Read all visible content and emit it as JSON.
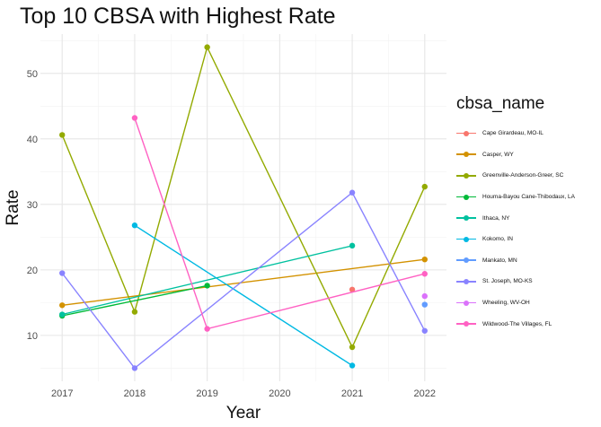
{
  "chart_data": {
    "type": "line",
    "title": "Top 10 CBSA with Highest Rate",
    "xlabel": "Year",
    "ylabel": "Rate",
    "x_ticks": [
      2017,
      2018,
      2019,
      2020,
      2021,
      2022
    ],
    "y_ticks": [
      10,
      20,
      30,
      40,
      50
    ],
    "xlim": [
      2016.7,
      2022.3
    ],
    "ylim": [
      3.0,
      56.0
    ],
    "grid": true,
    "legend_title": "cbsa_name",
    "legend_position": "right",
    "series": [
      {
        "name": "Cape Girardeau, MO-IL",
        "color": "#F8766D",
        "points": [
          [
            2021,
            17.0
          ]
        ]
      },
      {
        "name": "Casper, WY",
        "color": "#D39200",
        "points": [
          [
            2017,
            14.6
          ],
          [
            2022,
            21.6
          ]
        ]
      },
      {
        "name": "Greenville-Anderson-Greer, SC",
        "color": "#93AA00",
        "points": [
          [
            2017,
            40.6
          ],
          [
            2018,
            13.6
          ],
          [
            2019,
            54.0
          ],
          [
            2021,
            8.2
          ],
          [
            2022,
            32.7
          ]
        ]
      },
      {
        "name": "Houma-Bayou Cane-Thibodaux, LA",
        "color": "#00BA38",
        "points": [
          [
            2017,
            13.0
          ],
          [
            2019,
            17.6
          ]
        ]
      },
      {
        "name": "Ithaca, NY",
        "color": "#00C19F",
        "points": [
          [
            2017,
            13.2
          ],
          [
            2021,
            23.7
          ]
        ]
      },
      {
        "name": "Kokomo, IN",
        "color": "#00B9E3",
        "points": [
          [
            2018,
            26.8
          ],
          [
            2021,
            5.4
          ]
        ]
      },
      {
        "name": "Mankato, MN",
        "color": "#619CFF",
        "points": [
          [
            2022,
            14.7
          ]
        ]
      },
      {
        "name": "St. Joseph, MO-KS",
        "color": "#8983FF",
        "points": [
          [
            2017,
            19.5
          ],
          [
            2018,
            5.0
          ],
          [
            2021,
            31.8
          ],
          [
            2022,
            10.7
          ]
        ]
      },
      {
        "name": "Wheeling, WV-OH",
        "color": "#DB72FB",
        "points": [
          [
            2022,
            16.0
          ]
        ]
      },
      {
        "name": "Wildwood-The Villages, FL",
        "color": "#FF61C3",
        "points": [
          [
            2018,
            43.2
          ],
          [
            2019,
            11.0
          ],
          [
            2022,
            19.4
          ]
        ]
      }
    ]
  }
}
